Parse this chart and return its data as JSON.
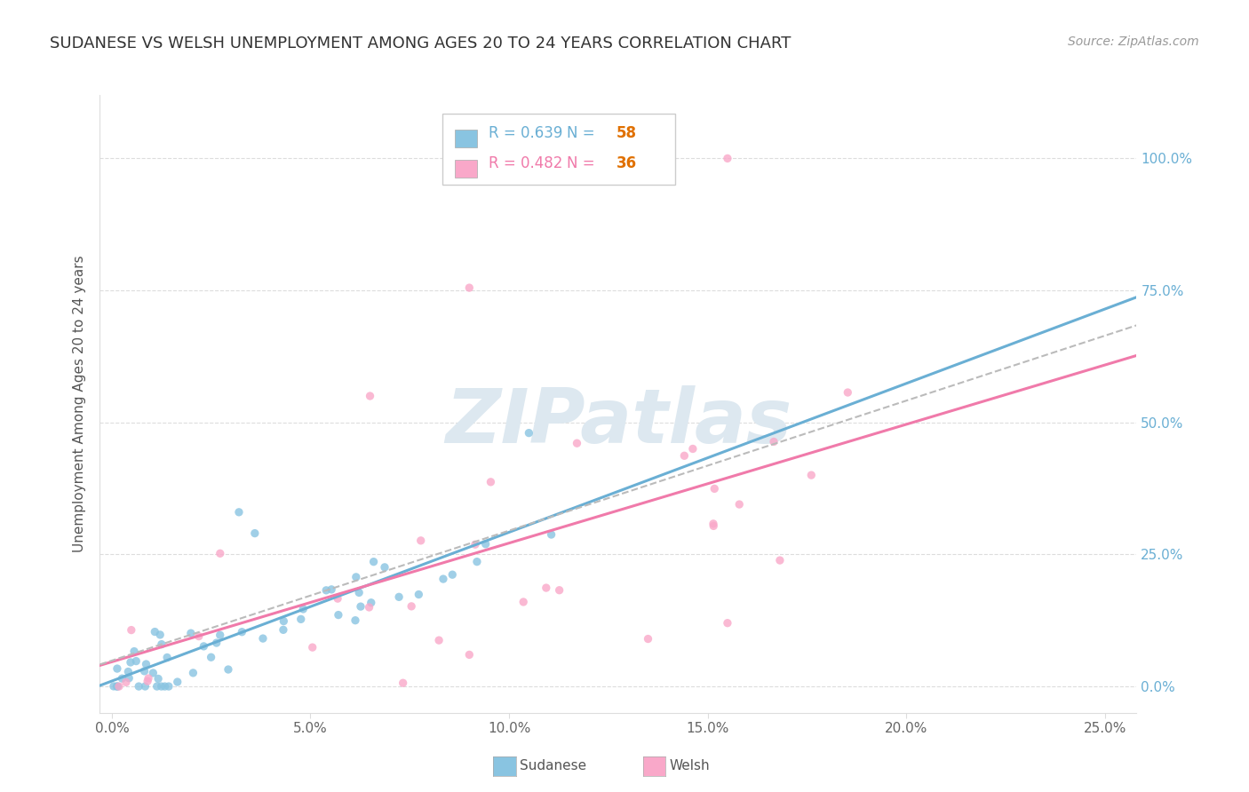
{
  "title": "SUDANESE VS WELSH UNEMPLOYMENT AMONG AGES 20 TO 24 YEARS CORRELATION CHART",
  "source": "Source: ZipAtlas.com",
  "ylabel_label": "Unemployment Among Ages 20 to 24 years",
  "color_sudanese": "#89c4e1",
  "color_welsh": "#f9a8c9",
  "color_trendline_sudanese": "#6aafd4",
  "color_trendline_welsh": "#f07aaa",
  "color_dashed": "#bbbbbb",
  "watermark_text": "ZIPatlas",
  "watermark_color": "#dde8f0",
  "background_color": "#ffffff",
  "grid_color": "#dddddd",
  "legend_r_sud": "R = 0.639",
  "legend_n_sud": "N = 58",
  "legend_r_welsh": "R = 0.482",
  "legend_n_welsh": "N = 36",
  "legend_color_r": "#6aafd4",
  "legend_color_r_welsh": "#f07aaa",
  "legend_color_n": "#e07000",
  "x_tick_vals": [
    0.0,
    0.05,
    0.1,
    0.15,
    0.2,
    0.25
  ],
  "x_tick_labels": [
    "0.0%",
    "5.0%",
    "10.0%",
    "15.0%",
    "20.0%",
    "25.0%"
  ],
  "y_tick_vals": [
    0.0,
    0.25,
    0.5,
    0.75,
    1.0
  ],
  "y_tick_labels": [
    "0.0%",
    "25.0%",
    "50.0%",
    "75.0%",
    "100.0%"
  ],
  "xlim": [
    -0.003,
    0.258
  ],
  "ylim": [
    -0.05,
    1.12
  ],
  "bottom_legend_labels": [
    "Sudanese",
    "Welsh"
  ]
}
